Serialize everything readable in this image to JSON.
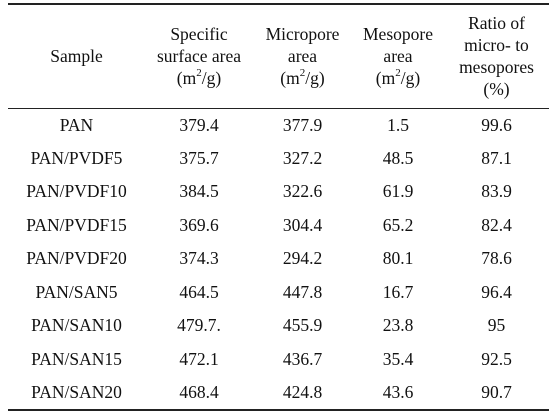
{
  "header": {
    "sample": "Sample",
    "specific_surface_area": [
      "Specific",
      "surface area",
      "(m²/g)"
    ],
    "micropore_area": [
      "Micropore",
      "area",
      "(m²/g)"
    ],
    "mesopore_area": [
      "Mesopore",
      "area",
      "(m²/g)"
    ],
    "ratio": [
      "Ratio of",
      "micro- to",
      "mesopores",
      "(%)"
    ]
  },
  "rows": [
    [
      "PAN",
      "379.4",
      "377.9",
      "1.5",
      "99.6"
    ],
    [
      "PAN/PVDF5",
      "375.7",
      "327.2",
      "48.5",
      "87.1"
    ],
    [
      "PAN/PVDF10",
      "384.5",
      "322.6",
      "61.9",
      "83.9"
    ],
    [
      "PAN/PVDF15",
      "369.6",
      "304.4",
      "65.2",
      "82.4"
    ],
    [
      "PAN/PVDF20",
      "374.3",
      "294.2",
      "80.1",
      "78.6"
    ],
    [
      "PAN/SAN5",
      "464.5",
      "447.8",
      "16.7",
      "96.4"
    ],
    [
      "PAN/SAN10",
      "479.7.",
      "455.9",
      "23.8",
      "95"
    ],
    [
      "PAN/SAN15",
      "472.1",
      "436.7",
      "35.4",
      "92.5"
    ],
    [
      "PAN/SAN20",
      "468.4",
      "424.8",
      "43.6",
      "90.7"
    ]
  ]
}
